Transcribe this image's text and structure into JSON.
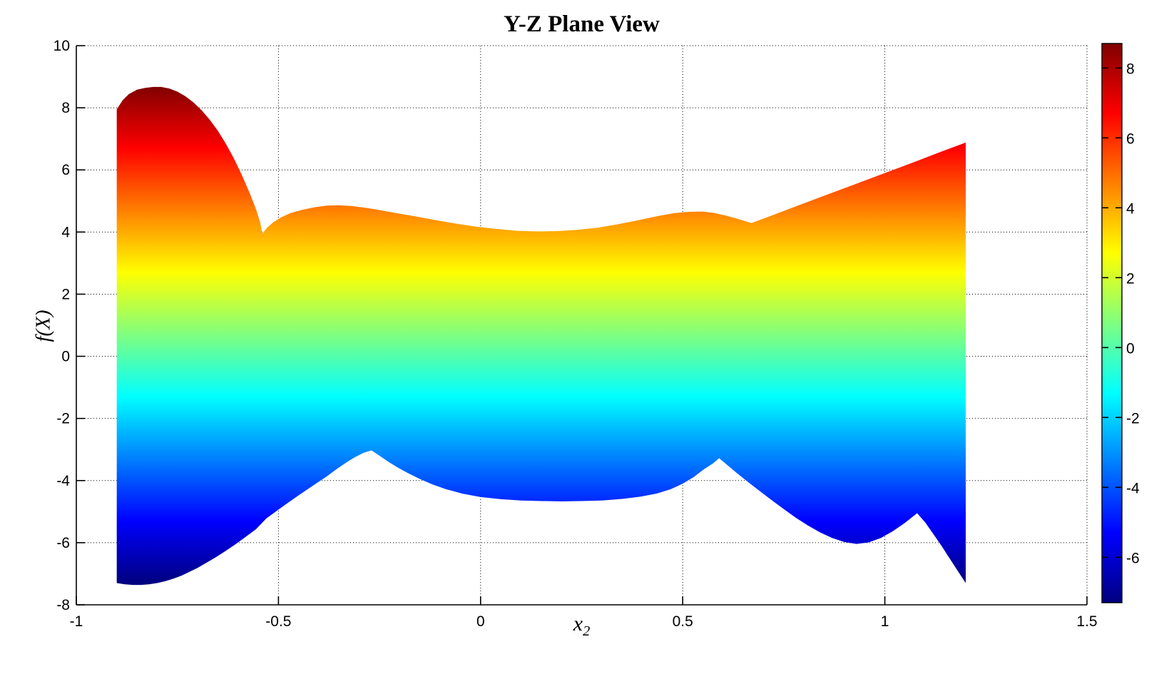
{
  "chart_data": {
    "type": "area",
    "title": "Y-Z Plane View",
    "xlabel": "x",
    "xlabel_sub": "2",
    "ylabel": "f(X)",
    "xlim": [
      -1,
      1.5
    ],
    "ylim": [
      -8,
      10
    ],
    "xticks": [
      -1,
      -0.5,
      0,
      0.5,
      1,
      1.5
    ],
    "xtick_labels": [
      "-1",
      "-0.5",
      "0",
      "0.5",
      "1",
      "1.5"
    ],
    "yticks": [
      10,
      8,
      6,
      4,
      2,
      0,
      -2,
      -4,
      -6,
      -8
    ],
    "ytick_labels": [
      "10",
      "8",
      "6",
      "4",
      "2",
      "0",
      "-2",
      "-4",
      "-6",
      "-8"
    ],
    "grid": true,
    "background_color": "#ffffff",
    "axis_color": "#000000",
    "colormap": "jet",
    "jet_stops": [
      [
        0,
        "#800000"
      ],
      [
        0.125,
        "#ff0000"
      ],
      [
        0.375,
        "#ffff00"
      ],
      [
        0.625,
        "#00ffff"
      ],
      [
        0.875,
        "#0000ff"
      ],
      [
        1,
        "#000080"
      ]
    ],
    "colorbar": {
      "min": -7.3,
      "max": 8.7,
      "ticks": [
        8,
        6,
        4,
        2,
        0,
        -2,
        -4,
        -6
      ],
      "tick_labels": [
        "8",
        "6",
        "4",
        "2",
        "0",
        "-2",
        "-4",
        "-6"
      ]
    },
    "surface_view": "side projection of 3D surface onto Y-Z plane, colored by f(X)",
    "x_range_of_surface": [
      -0.9,
      1.2
    ],
    "upper_envelope": [
      [
        -0.9,
        7.95
      ],
      [
        -0.885,
        8.25
      ],
      [
        -0.87,
        8.44
      ],
      [
        -0.85,
        8.58
      ],
      [
        -0.83,
        8.64
      ],
      [
        -0.81,
        8.67
      ],
      [
        -0.79,
        8.67
      ],
      [
        -0.77,
        8.62
      ],
      [
        -0.75,
        8.52
      ],
      [
        -0.73,
        8.37
      ],
      [
        -0.71,
        8.17
      ],
      [
        -0.69,
        7.92
      ],
      [
        -0.67,
        7.62
      ],
      [
        -0.65,
        7.26
      ],
      [
        -0.63,
        6.84
      ],
      [
        -0.61,
        6.36
      ],
      [
        -0.59,
        5.82
      ],
      [
        -0.57,
        5.22
      ],
      [
        -0.555,
        4.72
      ],
      [
        -0.545,
        4.3
      ],
      [
        -0.54,
        3.95
      ],
      [
        -0.528,
        4.14
      ],
      [
        -0.513,
        4.31
      ],
      [
        -0.494,
        4.47
      ],
      [
        -0.47,
        4.61
      ],
      [
        -0.44,
        4.72
      ],
      [
        -0.41,
        4.8
      ],
      [
        -0.38,
        4.85
      ],
      [
        -0.35,
        4.86
      ],
      [
        -0.32,
        4.84
      ],
      [
        -0.29,
        4.79
      ],
      [
        -0.26,
        4.73
      ],
      [
        -0.23,
        4.66
      ],
      [
        -0.195,
        4.58
      ],
      [
        -0.155,
        4.49
      ],
      [
        -0.11,
        4.38
      ],
      [
        -0.06,
        4.27
      ],
      [
        -0.01,
        4.17
      ],
      [
        0.04,
        4.1
      ],
      [
        0.09,
        4.04
      ],
      [
        0.14,
        4.02
      ],
      [
        0.19,
        4.03
      ],
      [
        0.24,
        4.07
      ],
      [
        0.29,
        4.14
      ],
      [
        0.34,
        4.25
      ],
      [
        0.39,
        4.38
      ],
      [
        0.44,
        4.52
      ],
      [
        0.48,
        4.61
      ],
      [
        0.515,
        4.65
      ],
      [
        0.55,
        4.66
      ],
      [
        0.58,
        4.61
      ],
      [
        0.61,
        4.52
      ],
      [
        0.64,
        4.41
      ],
      [
        0.66,
        4.33
      ],
      [
        0.67,
        4.29
      ],
      [
        0.72,
        4.53
      ],
      [
        0.78,
        4.83
      ],
      [
        0.85,
        5.17
      ],
      [
        0.92,
        5.51
      ],
      [
        1.0,
        5.9
      ],
      [
        1.08,
        6.29
      ],
      [
        1.14,
        6.59
      ],
      [
        1.2,
        6.88
      ]
    ],
    "lower_envelope": [
      [
        -0.9,
        -7.3
      ],
      [
        -0.88,
        -7.34
      ],
      [
        -0.86,
        -7.36
      ],
      [
        -0.84,
        -7.36
      ],
      [
        -0.82,
        -7.34
      ],
      [
        -0.8,
        -7.3
      ],
      [
        -0.78,
        -7.24
      ],
      [
        -0.76,
        -7.16
      ],
      [
        -0.74,
        -7.06
      ],
      [
        -0.72,
        -6.94
      ],
      [
        -0.7,
        -6.81
      ],
      [
        -0.68,
        -6.66
      ],
      [
        -0.655,
        -6.47
      ],
      [
        -0.63,
        -6.26
      ],
      [
        -0.605,
        -6.04
      ],
      [
        -0.58,
        -5.8
      ],
      [
        -0.555,
        -5.56
      ],
      [
        -0.53,
        -5.22
      ],
      [
        -0.505,
        -4.98
      ],
      [
        -0.48,
        -4.75
      ],
      [
        -0.455,
        -4.52
      ],
      [
        -0.43,
        -4.3
      ],
      [
        -0.405,
        -4.08
      ],
      [
        -0.38,
        -3.86
      ],
      [
        -0.355,
        -3.62
      ],
      [
        -0.33,
        -3.4
      ],
      [
        -0.31,
        -3.24
      ],
      [
        -0.29,
        -3.11
      ],
      [
        -0.27,
        -3.03
      ],
      [
        -0.25,
        -3.2
      ],
      [
        -0.23,
        -3.38
      ],
      [
        -0.205,
        -3.58
      ],
      [
        -0.18,
        -3.76
      ],
      [
        -0.15,
        -3.95
      ],
      [
        -0.12,
        -4.12
      ],
      [
        -0.085,
        -4.28
      ],
      [
        -0.045,
        -4.42
      ],
      [
        0.0,
        -4.53
      ],
      [
        0.05,
        -4.6
      ],
      [
        0.1,
        -4.64
      ],
      [
        0.15,
        -4.66
      ],
      [
        0.2,
        -4.67
      ],
      [
        0.25,
        -4.66
      ],
      [
        0.3,
        -4.64
      ],
      [
        0.35,
        -4.59
      ],
      [
        0.395,
        -4.52
      ],
      [
        0.435,
        -4.42
      ],
      [
        0.47,
        -4.28
      ],
      [
        0.5,
        -4.1
      ],
      [
        0.527,
        -3.89
      ],
      [
        0.553,
        -3.63
      ],
      [
        0.575,
        -3.45
      ],
      [
        0.59,
        -3.28
      ],
      [
        0.612,
        -3.52
      ],
      [
        0.635,
        -3.77
      ],
      [
        0.66,
        -4.03
      ],
      [
        0.69,
        -4.33
      ],
      [
        0.72,
        -4.63
      ],
      [
        0.75,
        -4.92
      ],
      [
        0.78,
        -5.2
      ],
      [
        0.81,
        -5.45
      ],
      [
        0.84,
        -5.67
      ],
      [
        0.87,
        -5.85
      ],
      [
        0.9,
        -5.98
      ],
      [
        0.93,
        -6.04
      ],
      [
        0.96,
        -5.99
      ],
      [
        0.99,
        -5.85
      ],
      [
        1.02,
        -5.63
      ],
      [
        1.05,
        -5.36
      ],
      [
        1.08,
        -5.05
      ],
      [
        1.1,
        -5.35
      ],
      [
        1.12,
        -5.72
      ],
      [
        1.14,
        -6.1
      ],
      [
        1.16,
        -6.5
      ],
      [
        1.18,
        -6.9
      ],
      [
        1.2,
        -7.3
      ]
    ]
  }
}
